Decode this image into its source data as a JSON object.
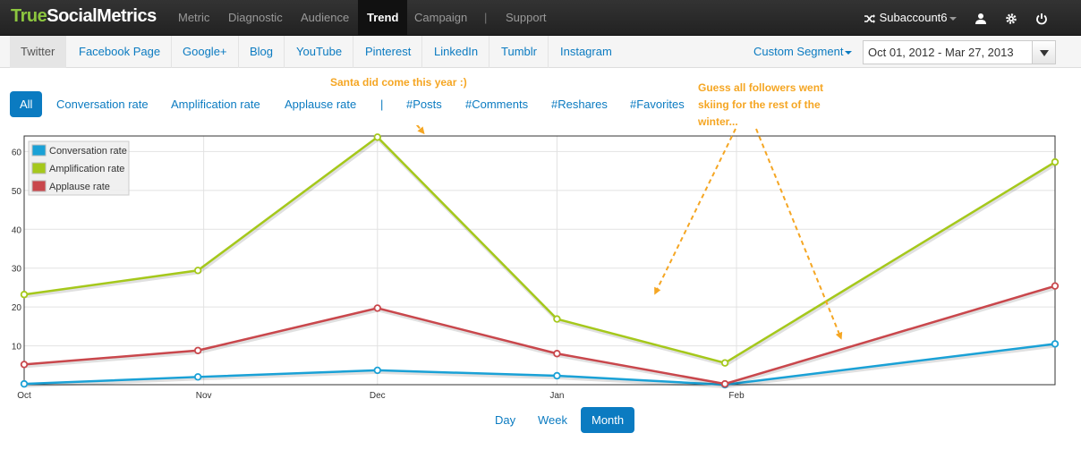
{
  "brand": {
    "part1": "True",
    "part2": "SocialMetrics"
  },
  "nav": {
    "items": [
      {
        "label": "Metric"
      },
      {
        "label": "Diagnostic"
      },
      {
        "label": "Audience"
      },
      {
        "label": "Trend",
        "active": true
      },
      {
        "label": "Campaign"
      },
      {
        "label": "Support"
      }
    ],
    "separator": "|",
    "account": "Subaccount6"
  },
  "subnav": {
    "tabs": [
      {
        "label": "Twitter",
        "active": true
      },
      {
        "label": "Facebook Page"
      },
      {
        "label": "Google+"
      },
      {
        "label": "Blog"
      },
      {
        "label": "YouTube"
      },
      {
        "label": "Pinterest"
      },
      {
        "label": "LinkedIn"
      },
      {
        "label": "Tumblr"
      },
      {
        "label": "Instagram"
      }
    ],
    "custom_segment": "Custom Segment",
    "date_range": "Oct 01, 2012 - Mar 27, 2013"
  },
  "filters": {
    "items": [
      {
        "label": "All",
        "active": true
      },
      {
        "label": "Conversation rate"
      },
      {
        "label": "Amplification rate"
      },
      {
        "label": "Applause rate"
      },
      {
        "label": "#Posts"
      },
      {
        "label": "#Comments"
      },
      {
        "label": "#Reshares"
      },
      {
        "label": "#Favorites"
      }
    ],
    "separator": "|"
  },
  "annotations": {
    "santa": "Santa did come this year :)",
    "skiing_line1": "Guess all followers went",
    "skiing_line2": "skiing for the rest of the",
    "skiing_line3": "winter..."
  },
  "granularity": {
    "items": [
      {
        "label": "Day"
      },
      {
        "label": "Week"
      },
      {
        "label": "Month",
        "active": true
      }
    ]
  },
  "colors": {
    "accent": "#0b7bc1",
    "annotation": "#f5a623",
    "conversation": "#1aa1d6",
    "amplification": "#a5c81b",
    "applause": "#c9474c"
  },
  "chart_data": {
    "type": "line",
    "x_tick_labels": [
      "Oct",
      "Nov",
      "Dec",
      "Jan",
      "Feb"
    ],
    "x_range_days": [
      0,
      178
    ],
    "x_tick_days": [
      0,
      31,
      61,
      92,
      123
    ],
    "ylim": [
      0,
      64
    ],
    "y_ticks": [
      10,
      20,
      30,
      40,
      50,
      60
    ],
    "grid": true,
    "legend_position": "top-left",
    "series": [
      {
        "name": "Conversation rate",
        "color": "#1aa1d6",
        "points": [
          [
            0,
            0.2
          ],
          [
            30,
            2
          ],
          [
            61,
            3.7
          ],
          [
            92,
            2.3
          ],
          [
            121,
            0
          ],
          [
            178,
            10.5
          ]
        ]
      },
      {
        "name": "Amplification rate",
        "color": "#a5c81b",
        "points": [
          [
            0,
            23.2
          ],
          [
            30,
            29.4
          ],
          [
            61,
            63.7
          ],
          [
            92,
            16.9
          ],
          [
            121,
            5.6
          ],
          [
            178,
            57.3
          ]
        ]
      },
      {
        "name": "Applause rate",
        "color": "#c9474c",
        "points": [
          [
            0,
            5.2
          ],
          [
            30,
            8.8
          ],
          [
            61,
            19.7
          ],
          [
            92,
            8
          ],
          [
            121,
            0.2
          ],
          [
            178,
            25.4
          ]
        ]
      }
    ]
  }
}
